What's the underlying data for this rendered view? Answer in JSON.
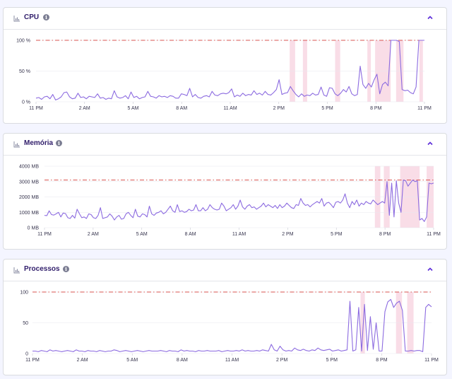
{
  "colors": {
    "line": "#8c6be0",
    "threshold": "#d9534f",
    "highlight": "#f9dde7",
    "title": "#2f1c6a",
    "grid": "#e7e8ef"
  },
  "x_ticks": [
    "11 PM",
    "2 AM",
    "5 AM",
    "8 AM",
    "11 AM",
    "2 PM",
    "5 PM",
    "8 PM",
    "11 PM"
  ],
  "cards": [
    {
      "title": "CPU",
      "icon": "bar-chart-icon"
    },
    {
      "title": "Memória",
      "icon": "bar-chart-icon"
    },
    {
      "title": "Processos",
      "icon": "bar-chart-icon"
    }
  ],
  "chart_data": [
    {
      "type": "line",
      "title": "CPU",
      "y_ticks": [
        "0 %",
        "50 %",
        "100 %"
      ],
      "ylim": [
        0,
        100
      ],
      "threshold": 100,
      "x_ticks": [
        "11 PM",
        "2 AM",
        "5 AM",
        "8 AM",
        "11 AM",
        "2 PM",
        "5 PM",
        "8 PM",
        "11 PM"
      ],
      "highlight_ranges": [
        [
          0.653,
          0.667
        ],
        [
          0.687,
          0.698
        ],
        [
          0.77,
          0.783
        ],
        [
          0.853,
          0.862
        ],
        [
          0.873,
          0.913
        ],
        [
          0.927,
          0.946
        ],
        [
          0.987,
          0.996
        ]
      ],
      "values": [
        6,
        7,
        4,
        8,
        9,
        5,
        12,
        3,
        5,
        8,
        15,
        16,
        8,
        5,
        6,
        14,
        7,
        8,
        5,
        9,
        8,
        7,
        13,
        6,
        7,
        4,
        6,
        5,
        18,
        8,
        6,
        7,
        10,
        5,
        16,
        7,
        9,
        5,
        7,
        8,
        17,
        9,
        8,
        6,
        10,
        8,
        9,
        7,
        10,
        9,
        6,
        6,
        13,
        12,
        10,
        22,
        8,
        12,
        7,
        6,
        9,
        10,
        8,
        17,
        11,
        10,
        13,
        14,
        13,
        15,
        21,
        8,
        11,
        9,
        14,
        10,
        12,
        11,
        18,
        12,
        14,
        11,
        17,
        12,
        11,
        15,
        20,
        36,
        12,
        14,
        15,
        25,
        18,
        12,
        8,
        13,
        9,
        11,
        10,
        14,
        11,
        12,
        24,
        11,
        9,
        23,
        22,
        13,
        10,
        14,
        20,
        16,
        25,
        13,
        10,
        12,
        58,
        28,
        22,
        30,
        24,
        36,
        45,
        13,
        28,
        32,
        26,
        100,
        100,
        100,
        98,
        20,
        18,
        19,
        15,
        13,
        24,
        100,
        100,
        100
      ]
    },
    {
      "type": "line",
      "title": "Memória",
      "y_ticks": [
        "0 MB",
        "1000 MB",
        "2000 MB",
        "3000 MB",
        "4000 MB"
      ],
      "ylim": [
        0,
        4000
      ],
      "threshold": 3100,
      "x_ticks": [
        "11 PM",
        "2 AM",
        "5 AM",
        "8 AM",
        "11 AM",
        "2 PM",
        "5 PM",
        "8 PM",
        "11 PM"
      ],
      "highlight_ranges": [
        [
          0.849,
          0.863
        ],
        [
          0.872,
          0.887
        ],
        [
          0.914,
          0.964
        ],
        [
          0.982,
          1.0
        ]
      ],
      "values": [
        800,
        780,
        1100,
        850,
        820,
        900,
        1000,
        700,
        950,
        920,
        650,
        600,
        800,
        620,
        1200,
        900,
        650,
        700,
        600,
        900,
        850,
        650,
        600,
        800,
        1300,
        600,
        650,
        700,
        900,
        750,
        500,
        700,
        800,
        550,
        600,
        900,
        1000,
        800,
        650,
        1200,
        750,
        700,
        900,
        850,
        700,
        1400,
        900,
        800,
        950,
        1000,
        1100,
        900,
        1000,
        1200,
        1400,
        1100,
        1000,
        1500,
        1050,
        1100,
        1000,
        1050,
        1200,
        1100,
        1150,
        1500,
        1100,
        1100,
        1300,
        1100,
        1200,
        1500,
        1300,
        1200,
        1150,
        1200,
        1600,
        1400,
        1100,
        1200,
        1300,
        1500,
        1200,
        1400,
        1800,
        1350,
        1200,
        1400,
        1500,
        1300,
        1350,
        1200,
        1300,
        1400,
        1600,
        1350,
        1500,
        1400,
        1300,
        1450,
        1250,
        1500,
        1300,
        1400,
        1600,
        1450,
        1300,
        1250,
        1500,
        1450,
        1900,
        1600,
        1450,
        1500,
        1350,
        1500,
        1600,
        1700,
        1600,
        1900,
        1400,
        1600,
        1650,
        1500,
        1300,
        1650,
        1700,
        1600,
        1800,
        2200,
        1600,
        1300,
        1700,
        1500,
        1800,
        1400,
        1600,
        1500,
        1700,
        1600,
        1550,
        1800,
        1650,
        1500,
        1600,
        1700,
        1600,
        3000,
        800,
        2900,
        700,
        3050,
        1600,
        1000,
        3100,
        3050,
        2700,
        2900,
        3100,
        3000,
        3050,
        500,
        600,
        400,
        700,
        2900,
        2850,
        2900
      ]
    },
    {
      "type": "line",
      "title": "Processos",
      "y_ticks": [
        "0",
        "50",
        "100"
      ],
      "ylim": [
        0,
        100
      ],
      "threshold": 100,
      "x_ticks": [
        "11 PM",
        "2 AM",
        "5 AM",
        "8 AM",
        "11 AM",
        "2 PM",
        "5 PM",
        "8 PM",
        "11 PM"
      ],
      "highlight_ranges": [
        [
          0.822,
          0.833
        ],
        [
          0.911,
          0.926
        ],
        [
          0.939,
          0.955
        ]
      ],
      "values": [
        4,
        4,
        3,
        5,
        4,
        3,
        6,
        4,
        5,
        4,
        3,
        4,
        5,
        4,
        3,
        6,
        4,
        4,
        3,
        5,
        4,
        4,
        3,
        5,
        4,
        3,
        4,
        4,
        6,
        5,
        3,
        4,
        5,
        4,
        3,
        4,
        5,
        4,
        3,
        4,
        5,
        4,
        4,
        4,
        5,
        4,
        3,
        5,
        4,
        4,
        3,
        6,
        4,
        5,
        4,
        4,
        3,
        5,
        4,
        4,
        5,
        4,
        4,
        4,
        5,
        3,
        4,
        5,
        4,
        4,
        5,
        4,
        6,
        4,
        5,
        4,
        4,
        5,
        4,
        6,
        5,
        4,
        15,
        6,
        4,
        12,
        6,
        4,
        5,
        4,
        9,
        6,
        5,
        7,
        5,
        4,
        6,
        5,
        9,
        6,
        5,
        6,
        7,
        4,
        5,
        6,
        4,
        5,
        6,
        85,
        4,
        6,
        75,
        4,
        80,
        5,
        60,
        7,
        50,
        4,
        4,
        68,
        84,
        88,
        75,
        82,
        85,
        70,
        4,
        4,
        5,
        4,
        5,
        5,
        3,
        75,
        80,
        76
      ]
    }
  ]
}
